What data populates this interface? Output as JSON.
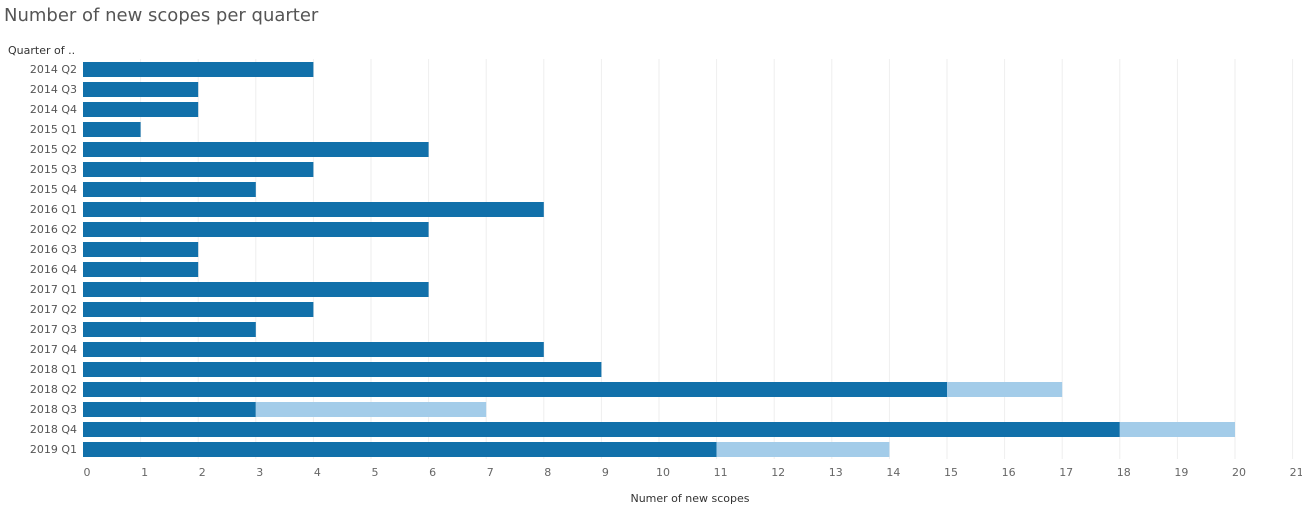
{
  "chart_data": {
    "type": "bar",
    "orientation": "horizontal",
    "stacked": true,
    "title": "Number of new scopes per quarter",
    "ylabel": "Quarter of ..",
    "xlabel": "Numer of new scopes",
    "xlim": [
      0,
      21
    ],
    "xticks": [
      0,
      1,
      2,
      3,
      4,
      5,
      6,
      7,
      8,
      9,
      10,
      11,
      12,
      13,
      14,
      15,
      16,
      17,
      18,
      19,
      20,
      21
    ],
    "grid": "vertical",
    "legend": "none",
    "categories": [
      "2014 Q2",
      "2014 Q3",
      "2014 Q4",
      "2015 Q1",
      "2015 Q2",
      "2015 Q3",
      "2015 Q4",
      "2016 Q1",
      "2016 Q2",
      "2016 Q3",
      "2016 Q4",
      "2017 Q1",
      "2017 Q2",
      "2017 Q3",
      "2017 Q4",
      "2018 Q1",
      "2018 Q2",
      "2018 Q3",
      "2018 Q4",
      "2019 Q1"
    ],
    "series": [
      {
        "color": "#1170aa",
        "values": [
          4,
          2,
          2,
          1,
          6,
          4,
          3,
          8,
          6,
          2,
          2,
          6,
          4,
          3,
          8,
          9,
          15,
          3,
          18,
          11
        ]
      },
      {
        "color": "#a3cce9",
        "values": [
          0,
          0,
          0,
          0,
          0,
          0,
          0,
          0,
          0,
          0,
          0,
          0,
          0,
          0,
          0,
          0,
          2,
          4,
          2,
          3
        ]
      }
    ]
  }
}
